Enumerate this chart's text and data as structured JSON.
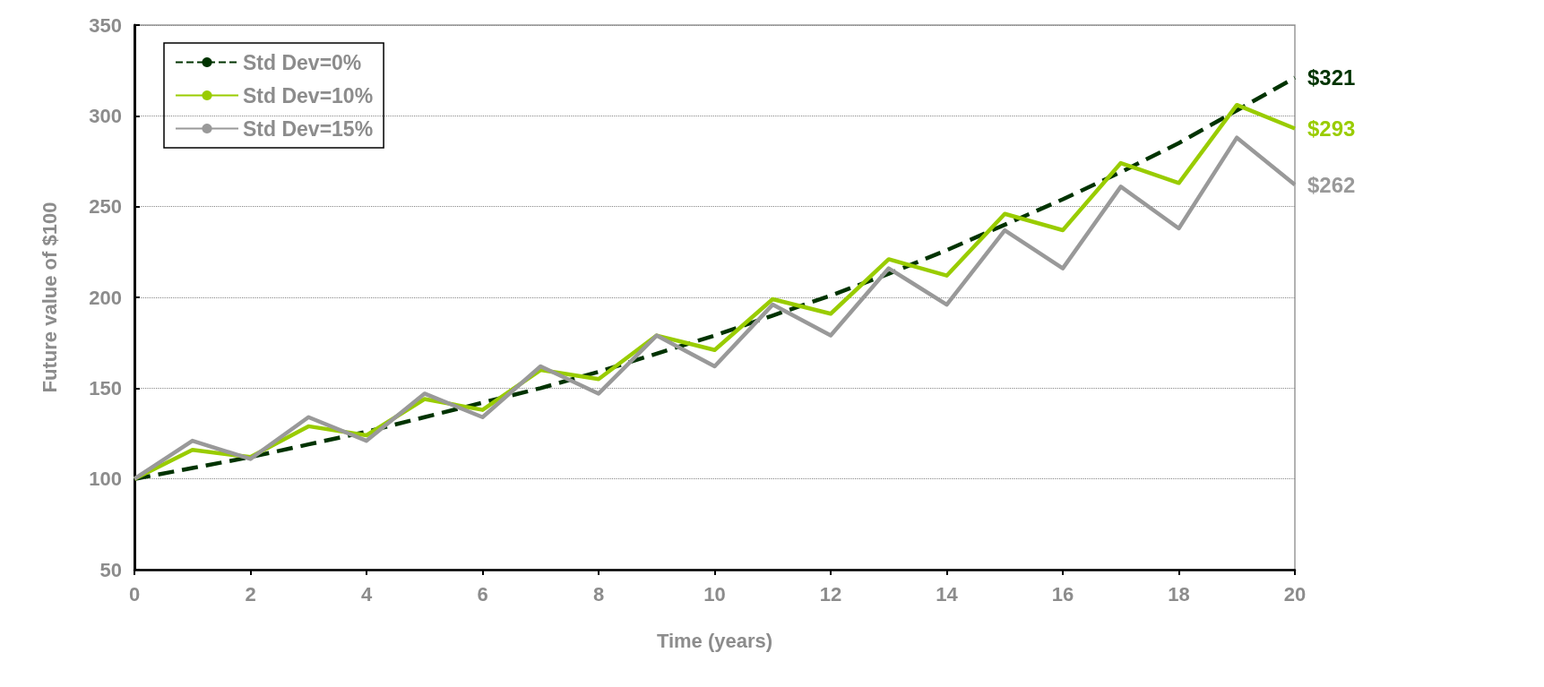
{
  "chart_data": {
    "type": "line",
    "xlabel": "Time (years)",
    "ylabel": "Future value of $100",
    "x": [
      0,
      1,
      2,
      3,
      4,
      5,
      6,
      7,
      8,
      9,
      10,
      11,
      12,
      13,
      14,
      15,
      16,
      17,
      18,
      19,
      20
    ],
    "series": [
      {
        "name": "Std Dev=0%",
        "color": "#003300",
        "line_style": "dashed",
        "values": [
          100,
          106,
          112,
          119,
          126,
          134,
          142,
          150,
          159,
          169,
          179,
          190,
          201,
          213,
          226,
          240,
          254,
          269,
          285,
          303,
          321
        ],
        "value_labels": [
          null,
          null,
          null,
          null,
          null,
          null,
          null,
          null,
          null,
          null,
          null,
          null,
          null,
          null,
          null,
          null,
          null,
          null,
          null,
          null,
          "$321"
        ]
      },
      {
        "name": "Std Dev=10%",
        "color": "#99cc00",
        "line_style": "solid",
        "values": [
          100,
          116,
          112,
          129,
          124,
          144,
          138,
          160,
          155,
          179,
          171,
          199,
          191,
          221,
          212,
          246,
          237,
          274,
          263,
          306,
          293
        ],
        "value_labels": [
          null,
          null,
          null,
          null,
          null,
          null,
          null,
          null,
          null,
          null,
          null,
          null,
          null,
          null,
          null,
          null,
          null,
          null,
          null,
          null,
          "$293"
        ]
      },
      {
        "name": "Std Dev=15%",
        "color": "#999999",
        "line_style": "solid",
        "values": [
          100,
          121,
          111,
          134,
          121,
          147,
          134,
          162,
          147,
          179,
          162,
          196,
          179,
          216,
          196,
          237,
          216,
          261,
          238,
          288,
          262
        ],
        "value_labels": [
          null,
          null,
          null,
          null,
          null,
          null,
          null,
          null,
          null,
          null,
          null,
          null,
          null,
          null,
          null,
          null,
          null,
          null,
          null,
          null,
          "$262"
        ]
      }
    ],
    "xlim": [
      0,
      20
    ],
    "xticks": [
      0,
      2,
      4,
      6,
      8,
      10,
      12,
      14,
      16,
      18,
      20
    ],
    "ylim": [
      50,
      350
    ],
    "yticks": [
      50,
      100,
      150,
      200,
      250,
      300,
      350
    ],
    "grid": "y",
    "legend": "top left",
    "marker": "none"
  }
}
